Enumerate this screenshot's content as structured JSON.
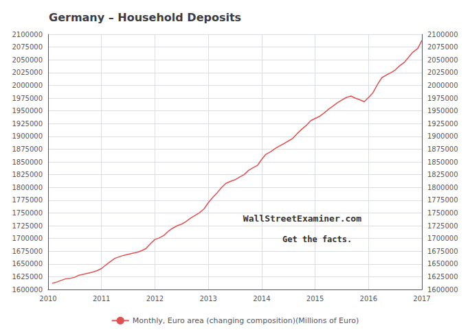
{
  "chart_data": {
    "type": "line",
    "title": "Germany – Household Deposits",
    "annotations": [
      "WallStreetExaminer.com",
      "Get the facts."
    ],
    "x": [
      2010.08,
      2010.17,
      2010.25,
      2010.33,
      2010.42,
      2010.5,
      2010.58,
      2010.67,
      2010.75,
      2010.83,
      2010.92,
      2011.0,
      2011.08,
      2011.17,
      2011.25,
      2011.33,
      2011.42,
      2011.5,
      2011.58,
      2011.67,
      2011.75,
      2011.83,
      2011.92,
      2012.0,
      2012.08,
      2012.17,
      2012.25,
      2012.33,
      2012.42,
      2012.5,
      2012.58,
      2012.67,
      2012.75,
      2012.83,
      2012.92,
      2013.0,
      2013.08,
      2013.17,
      2013.25,
      2013.33,
      2013.42,
      2013.5,
      2013.58,
      2013.67,
      2013.75,
      2013.83,
      2013.92,
      2014.0,
      2014.08,
      2014.17,
      2014.25,
      2014.33,
      2014.42,
      2014.5,
      2014.58,
      2014.67,
      2014.75,
      2014.83,
      2014.92,
      2015.0,
      2015.08,
      2015.17,
      2015.25,
      2015.33,
      2015.42,
      2015.5,
      2015.58,
      2015.67,
      2015.75,
      2015.83,
      2015.92,
      2016.0,
      2016.08,
      2016.17,
      2016.25,
      2016.33,
      2016.42,
      2016.5,
      2016.58,
      2016.67,
      2016.75,
      2016.83,
      2016.92,
      2017.0
    ],
    "series": [
      {
        "name": "Monthly, Euro area (changing composition)(Millions of Euro)",
        "color": "#E05050",
        "values": [
          1612000,
          1615000,
          1618000,
          1621000,
          1622000,
          1624000,
          1628000,
          1630000,
          1632000,
          1634000,
          1637000,
          1641000,
          1648000,
          1655000,
          1661000,
          1664000,
          1667000,
          1669000,
          1671000,
          1673000,
          1676000,
          1680000,
          1690000,
          1698000,
          1701000,
          1706000,
          1714000,
          1720000,
          1725000,
          1728000,
          1733000,
          1740000,
          1745000,
          1750000,
          1758000,
          1770000,
          1780000,
          1790000,
          1800000,
          1808000,
          1812000,
          1815000,
          1820000,
          1825000,
          1833000,
          1838000,
          1843000,
          1855000,
          1865000,
          1870000,
          1876000,
          1881000,
          1886000,
          1891000,
          1896000,
          1906000,
          1914000,
          1921000,
          1931000,
          1935000,
          1939000,
          1946000,
          1953000,
          1959000,
          1966000,
          1971000,
          1976000,
          1979000,
          1975000,
          1972000,
          1968000,
          1976000,
          1985000,
          2002000,
          2015000,
          2020000,
          2025000,
          2030000,
          2038000,
          2045000,
          2055000,
          2065000,
          2072000,
          2088000
        ]
      }
    ],
    "xlim": [
      2010,
      2017
    ],
    "xticks": [
      2010,
      2011,
      2012,
      2013,
      2014,
      2015,
      2016,
      2017
    ],
    "ylim": [
      1600000,
      2100000
    ],
    "yticks": [
      1600000,
      1625000,
      1650000,
      1675000,
      1700000,
      1725000,
      1750000,
      1775000,
      1800000,
      1825000,
      1850000,
      1875000,
      1900000,
      1925000,
      1950000,
      1975000,
      2000000,
      2025000,
      2050000,
      2075000,
      2100000
    ],
    "y2lim": [
      1600000,
      2100000
    ],
    "y2ticks": [
      1600000,
      1625000,
      1650000,
      1675000,
      1700000,
      1725000,
      1750000,
      1775000,
      1800000,
      1825000,
      1850000,
      1875000,
      1900000,
      1925000,
      1950000,
      1975000,
      2000000,
      2025000,
      2050000,
      2075000,
      2100000
    ],
    "grid": true,
    "legend": "bottom"
  }
}
